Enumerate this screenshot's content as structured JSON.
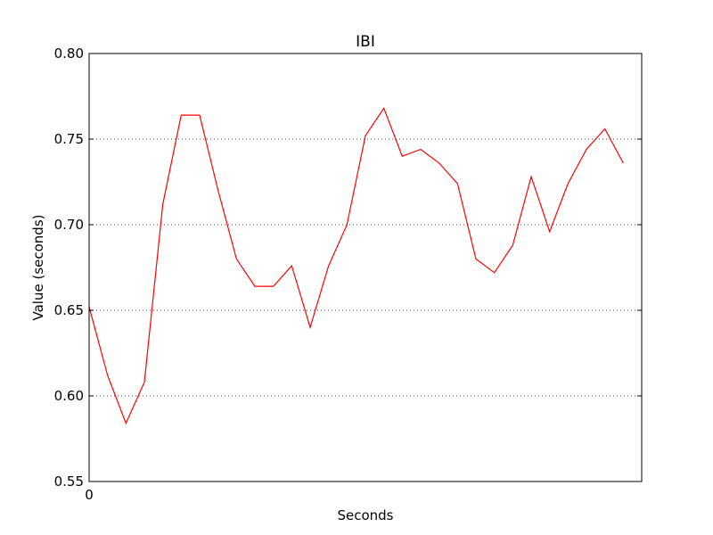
{
  "chart_data": {
    "type": "line",
    "title": "IBI",
    "xlabel": "Seconds",
    "ylabel": "Value (seconds)",
    "ylim": [
      0.55,
      0.8
    ],
    "yticks": [
      "0.55",
      "0.60",
      "0.65",
      "0.70",
      "0.75",
      "0.80"
    ],
    "xticks": [
      "0"
    ],
    "grid": "horizontal-dotted",
    "series": [
      {
        "color": "#ff0000",
        "x": [
          0,
          1,
          2,
          3,
          4,
          5,
          6,
          7,
          8,
          9,
          10,
          11,
          12,
          13,
          14,
          15,
          16,
          17,
          18,
          19,
          20,
          21,
          22,
          23,
          24,
          25,
          26,
          27,
          28,
          29
        ],
        "values": [
          0.652,
          0.612,
          0.584,
          0.608,
          0.712,
          0.764,
          0.764,
          0.72,
          0.68,
          0.664,
          0.664,
          0.676,
          0.64,
          0.676,
          0.7,
          0.752,
          0.768,
          0.74,
          0.744,
          0.736,
          0.724,
          0.68,
          0.672,
          0.688,
          0.728,
          0.696,
          0.724,
          0.744,
          0.756,
          0.736
        ]
      }
    ]
  }
}
